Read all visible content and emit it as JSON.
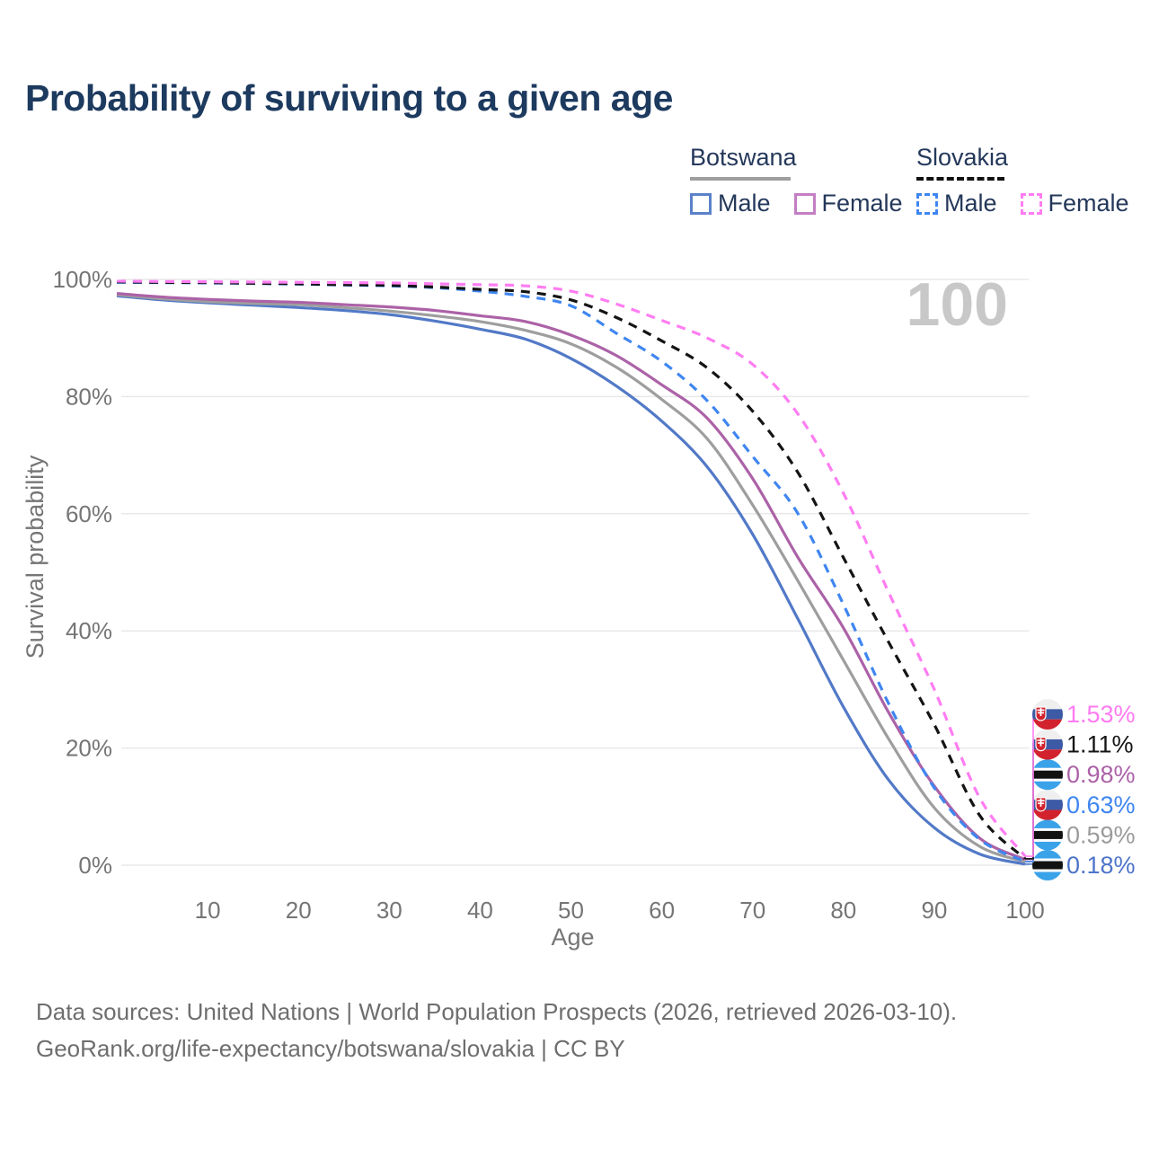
{
  "title": "Probability of surviving to a given age",
  "legend": {
    "groups": [
      {
        "label": "Botswana",
        "line_style": "solid",
        "underline_color": "#9e9e9e",
        "items": [
          {
            "label": "Male",
            "color": "#5b82c9"
          },
          {
            "label": "Female",
            "color": "#c47ec4"
          }
        ]
      },
      {
        "label": "Slovakia",
        "line_style": "dashed",
        "underline_color": "#111111",
        "items": [
          {
            "label": "Male",
            "color": "#3f86f0"
          },
          {
            "label": "Female",
            "color": "#ff7df2"
          }
        ]
      }
    ]
  },
  "footer": {
    "line1": "Data sources: United Nations | World Population Prospects (2026, retrieved 2026-03-10).",
    "line2": "GeoRank.org/life-expectancy/botswana/slovakia | CC BY"
  },
  "chart_data": {
    "type": "line",
    "title": "Probability of surviving to a given age",
    "xlabel": "Age",
    "ylabel": "Survival probability",
    "age_indicator": "100",
    "grid": "horizontal",
    "ylim": [
      0,
      100
    ],
    "xlim": [
      0,
      100
    ],
    "x_ticks": [
      10,
      20,
      30,
      40,
      50,
      60,
      70,
      80,
      90,
      100
    ],
    "y_ticks": [
      0,
      20,
      40,
      60,
      80,
      100
    ],
    "y_tick_suffix": "%",
    "x": [
      0,
      5,
      10,
      15,
      20,
      25,
      30,
      35,
      40,
      45,
      50,
      55,
      60,
      65,
      70,
      75,
      80,
      85,
      90,
      95,
      100
    ],
    "series": [
      {
        "name": "Botswana Male",
        "country": "Botswana",
        "sex": "Male",
        "flag": "bw",
        "dash": false,
        "color": "#5279c7",
        "label_color": "#4d74c9",
        "end_label": "0.18%",
        "values": [
          97.2,
          96.5,
          96.0,
          95.6,
          95.2,
          94.7,
          94.0,
          92.9,
          91.5,
          89.8,
          86.5,
          81.8,
          75.8,
          68.0,
          56.5,
          42.0,
          27.0,
          14.5,
          6.4,
          1.9,
          0.18
        ]
      },
      {
        "name": "Botswana Both sexes",
        "country": "Botswana",
        "sex": "Both sexes",
        "flag": "bw",
        "dash": false,
        "color": "#9e9e9e",
        "label_color": "#9b9b9b",
        "end_label": "0.59%",
        "values": [
          97.4,
          96.7,
          96.2,
          95.9,
          95.7,
          95.2,
          94.6,
          93.8,
          92.8,
          91.3,
          89.0,
          85.0,
          79.5,
          72.8,
          61.5,
          48.5,
          35.0,
          21.5,
          9.8,
          3.2,
          0.59
        ]
      },
      {
        "name": "Botswana Female",
        "country": "Botswana",
        "sex": "Female",
        "flag": "bw",
        "dash": false,
        "color": "#ac62a7",
        "label_color": "#ac62a7",
        "end_label": "0.98%",
        "values": [
          97.6,
          97.0,
          96.6,
          96.3,
          96.1,
          95.7,
          95.3,
          94.7,
          93.8,
          92.8,
          90.5,
          87.0,
          82.0,
          76.3,
          66.0,
          52.5,
          40.5,
          26.0,
          13.5,
          4.6,
          0.98
        ]
      },
      {
        "name": "Slovakia Male",
        "country": "Slovakia",
        "sex": "Male",
        "flag": "sk",
        "dash": true,
        "color": "#3f86f0",
        "label_color": "#3f86f0",
        "end_label": "0.63%",
        "values": [
          99.5,
          99.45,
          99.4,
          99.3,
          99.2,
          99.05,
          98.9,
          98.6,
          98.0,
          97.1,
          95.5,
          90.8,
          86.0,
          79.3,
          69.8,
          60.0,
          44.5,
          27.5,
          13.2,
          4.4,
          0.63
        ]
      },
      {
        "name": "Slovakia Both sexes",
        "country": "Slovakia",
        "sex": "Both sexes",
        "flag": "sk",
        "dash": true,
        "color": "#141414",
        "label_color": "#141414",
        "end_label": "1.11%",
        "values": [
          99.6,
          99.5,
          99.45,
          99.35,
          99.25,
          99.1,
          99.0,
          98.7,
          98.3,
          97.9,
          96.5,
          93.5,
          89.5,
          84.9,
          77.5,
          67.0,
          52.5,
          38.0,
          24.0,
          8.5,
          1.11
        ]
      },
      {
        "name": "Slovakia Female",
        "country": "Slovakia",
        "sex": "Female",
        "flag": "sk",
        "dash": true,
        "color": "#ff7df2",
        "label_color": "#ff7bf2",
        "end_label": "1.53%",
        "values": [
          99.7,
          99.65,
          99.6,
          99.55,
          99.5,
          99.45,
          99.4,
          99.25,
          99.1,
          98.9,
          98.0,
          95.8,
          93.0,
          90.0,
          85.5,
          77.0,
          63.5,
          46.5,
          30.0,
          11.5,
          1.53
        ]
      }
    ],
    "flag_colors": {
      "sk": {
        "white": "#efefef",
        "blue": "#3c5aa5",
        "red": "#d2222d"
      },
      "bw": {
        "blue": "#3aa2e8",
        "white": "#ffffff",
        "black": "#111111"
      }
    },
    "colors": {
      "gridline": "#e9e9e9",
      "tick_text": "#757575",
      "watermark": "#c8c8c8"
    }
  }
}
